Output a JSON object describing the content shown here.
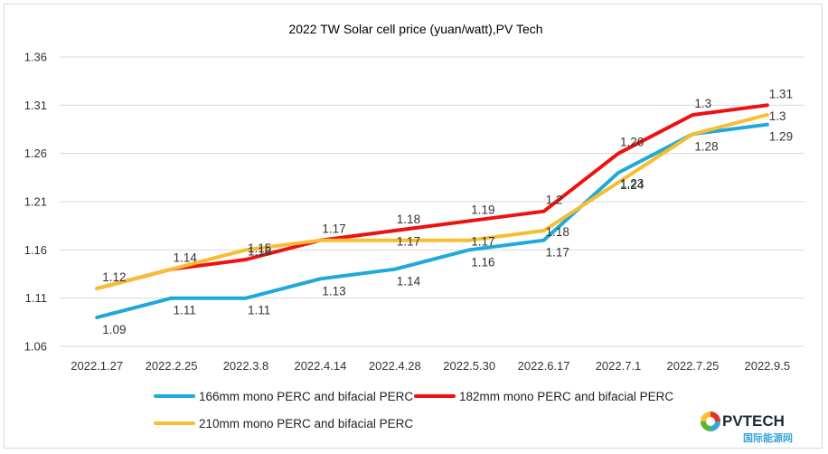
{
  "chart_data": {
    "type": "line",
    "title": "2022 TW Solar cell price (yuan/watt),PV Tech",
    "xlabel": "",
    "ylabel": "",
    "categories": [
      "2022.1.27",
      "2022.2.25",
      "2022.3.8",
      "2022.4.14",
      "2022.4.28",
      "2022.5.30",
      "2022.6.17",
      "2022.7.1",
      "2022.7.25",
      "2022.9.5"
    ],
    "ylim": [
      1.06,
      1.36
    ],
    "yticks": [
      "1.06",
      "1.11",
      "1.16",
      "1.21",
      "1.26",
      "1.31",
      "1.36"
    ],
    "grid": true,
    "legend": "bottom",
    "series": [
      {
        "name": "166mm mono PERC and bifacial PERC",
        "color": "#1da9dc",
        "values": [
          1.09,
          1.11,
          1.11,
          1.13,
          1.14,
          1.16,
          1.17,
          1.24,
          1.28,
          1.29
        ],
        "labels": [
          "1.09",
          "1.11",
          "1.11",
          "1.13",
          "1.14",
          "1.16",
          "1.17",
          "1.24",
          "1.28",
          "1.29"
        ]
      },
      {
        "name": "182mm mono PERC and bifacial PERC",
        "color": "#ee1111",
        "values": [
          1.12,
          1.14,
          1.15,
          1.17,
          1.18,
          1.19,
          1.2,
          1.26,
          1.3,
          1.31
        ],
        "labels": [
          "1.12",
          "1.14",
          "1.15",
          "1.17",
          "1.18",
          "1.19",
          "1.2",
          "1.26",
          "1.3",
          "1.31"
        ]
      },
      {
        "name": "210mm mono PERC and bifacial PERC",
        "color": "#f8bd32",
        "values": [
          1.12,
          1.14,
          1.16,
          1.17,
          1.17,
          1.17,
          1.18,
          1.23,
          1.28,
          1.3
        ],
        "labels": [
          "",
          "",
          "1.16",
          "",
          "1.17",
          "1.17",
          "1.18",
          "1.23",
          "",
          "1.3"
        ]
      }
    ]
  },
  "logo": {
    "brand": "PVTECH",
    "subtitle": "国际能源网"
  }
}
